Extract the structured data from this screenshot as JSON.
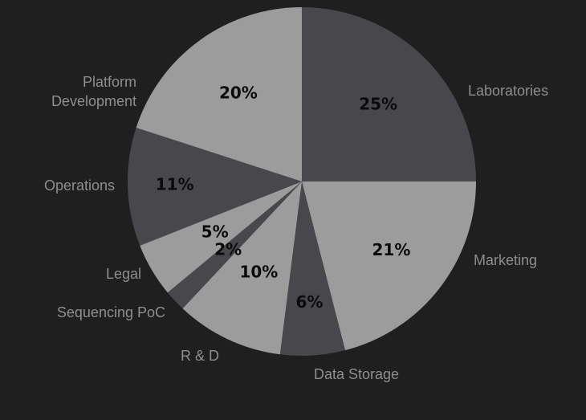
{
  "chart_data": {
    "type": "pie",
    "title": "",
    "slices": [
      {
        "label": "Laboratories",
        "value": 25,
        "pct_label": "25%",
        "color": "#48474b"
      },
      {
        "label": "Marketing",
        "value": 21,
        "pct_label": "21%",
        "color": "#9d9c9d"
      },
      {
        "label": "Data Storage",
        "value": 6,
        "pct_label": "6%",
        "color": "#48474b"
      },
      {
        "label": "R & D",
        "value": 10,
        "pct_label": "10%",
        "color": "#9d9c9d"
      },
      {
        "label": "Sequencing PoC",
        "value": 2,
        "pct_label": "2%",
        "color": "#48474b"
      },
      {
        "label": "Legal",
        "value": 5,
        "pct_label": "5%",
        "color": "#9d9c9d"
      },
      {
        "label": "Operations",
        "value": 11,
        "pct_label": "11%",
        "color": "#48474b"
      },
      {
        "label": "Platform Development",
        "value": 20,
        "pct_label": "20%",
        "color": "#9d9c9d"
      }
    ],
    "colors": {
      "background": "#1f1f20",
      "label_text": "#8e8e8e",
      "pct_text": "#0b0b0b"
    }
  }
}
